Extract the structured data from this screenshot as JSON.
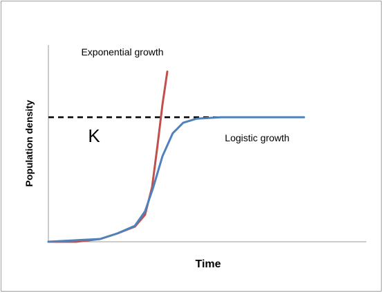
{
  "chart_data": {
    "type": "line",
    "x_label": "Time",
    "y_label": "Population density",
    "xlim": [
      0,
      100
    ],
    "ylim": [
      0,
      158
    ],
    "series": [
      {
        "name": "Exponential growth",
        "color": "#c0504d",
        "x": [
          0,
          8.7,
          16.3,
          21.7,
          27.2,
          30.4,
          32.6,
          34.3,
          35.9,
          37.4
        ],
        "values": [
          0,
          0,
          2.2,
          6.7,
          12.2,
          21.7,
          43.9,
          77.2,
          110.6,
          136.7
        ]
      },
      {
        "name": "Logistic growth",
        "color": "#4f81bd",
        "x": [
          0,
          16.3,
          21.7,
          27.2,
          30.4,
          33.0,
          35.9,
          39.1,
          42.4,
          46.7,
          54.3,
          80.4
        ],
        "values": [
          0,
          2.2,
          6.7,
          12.8,
          24.4,
          43.9,
          68.9,
          87.2,
          95.6,
          98.9,
          100,
          100
        ]
      }
    ],
    "hline": {
      "label": "K",
      "value": 100
    }
  }
}
